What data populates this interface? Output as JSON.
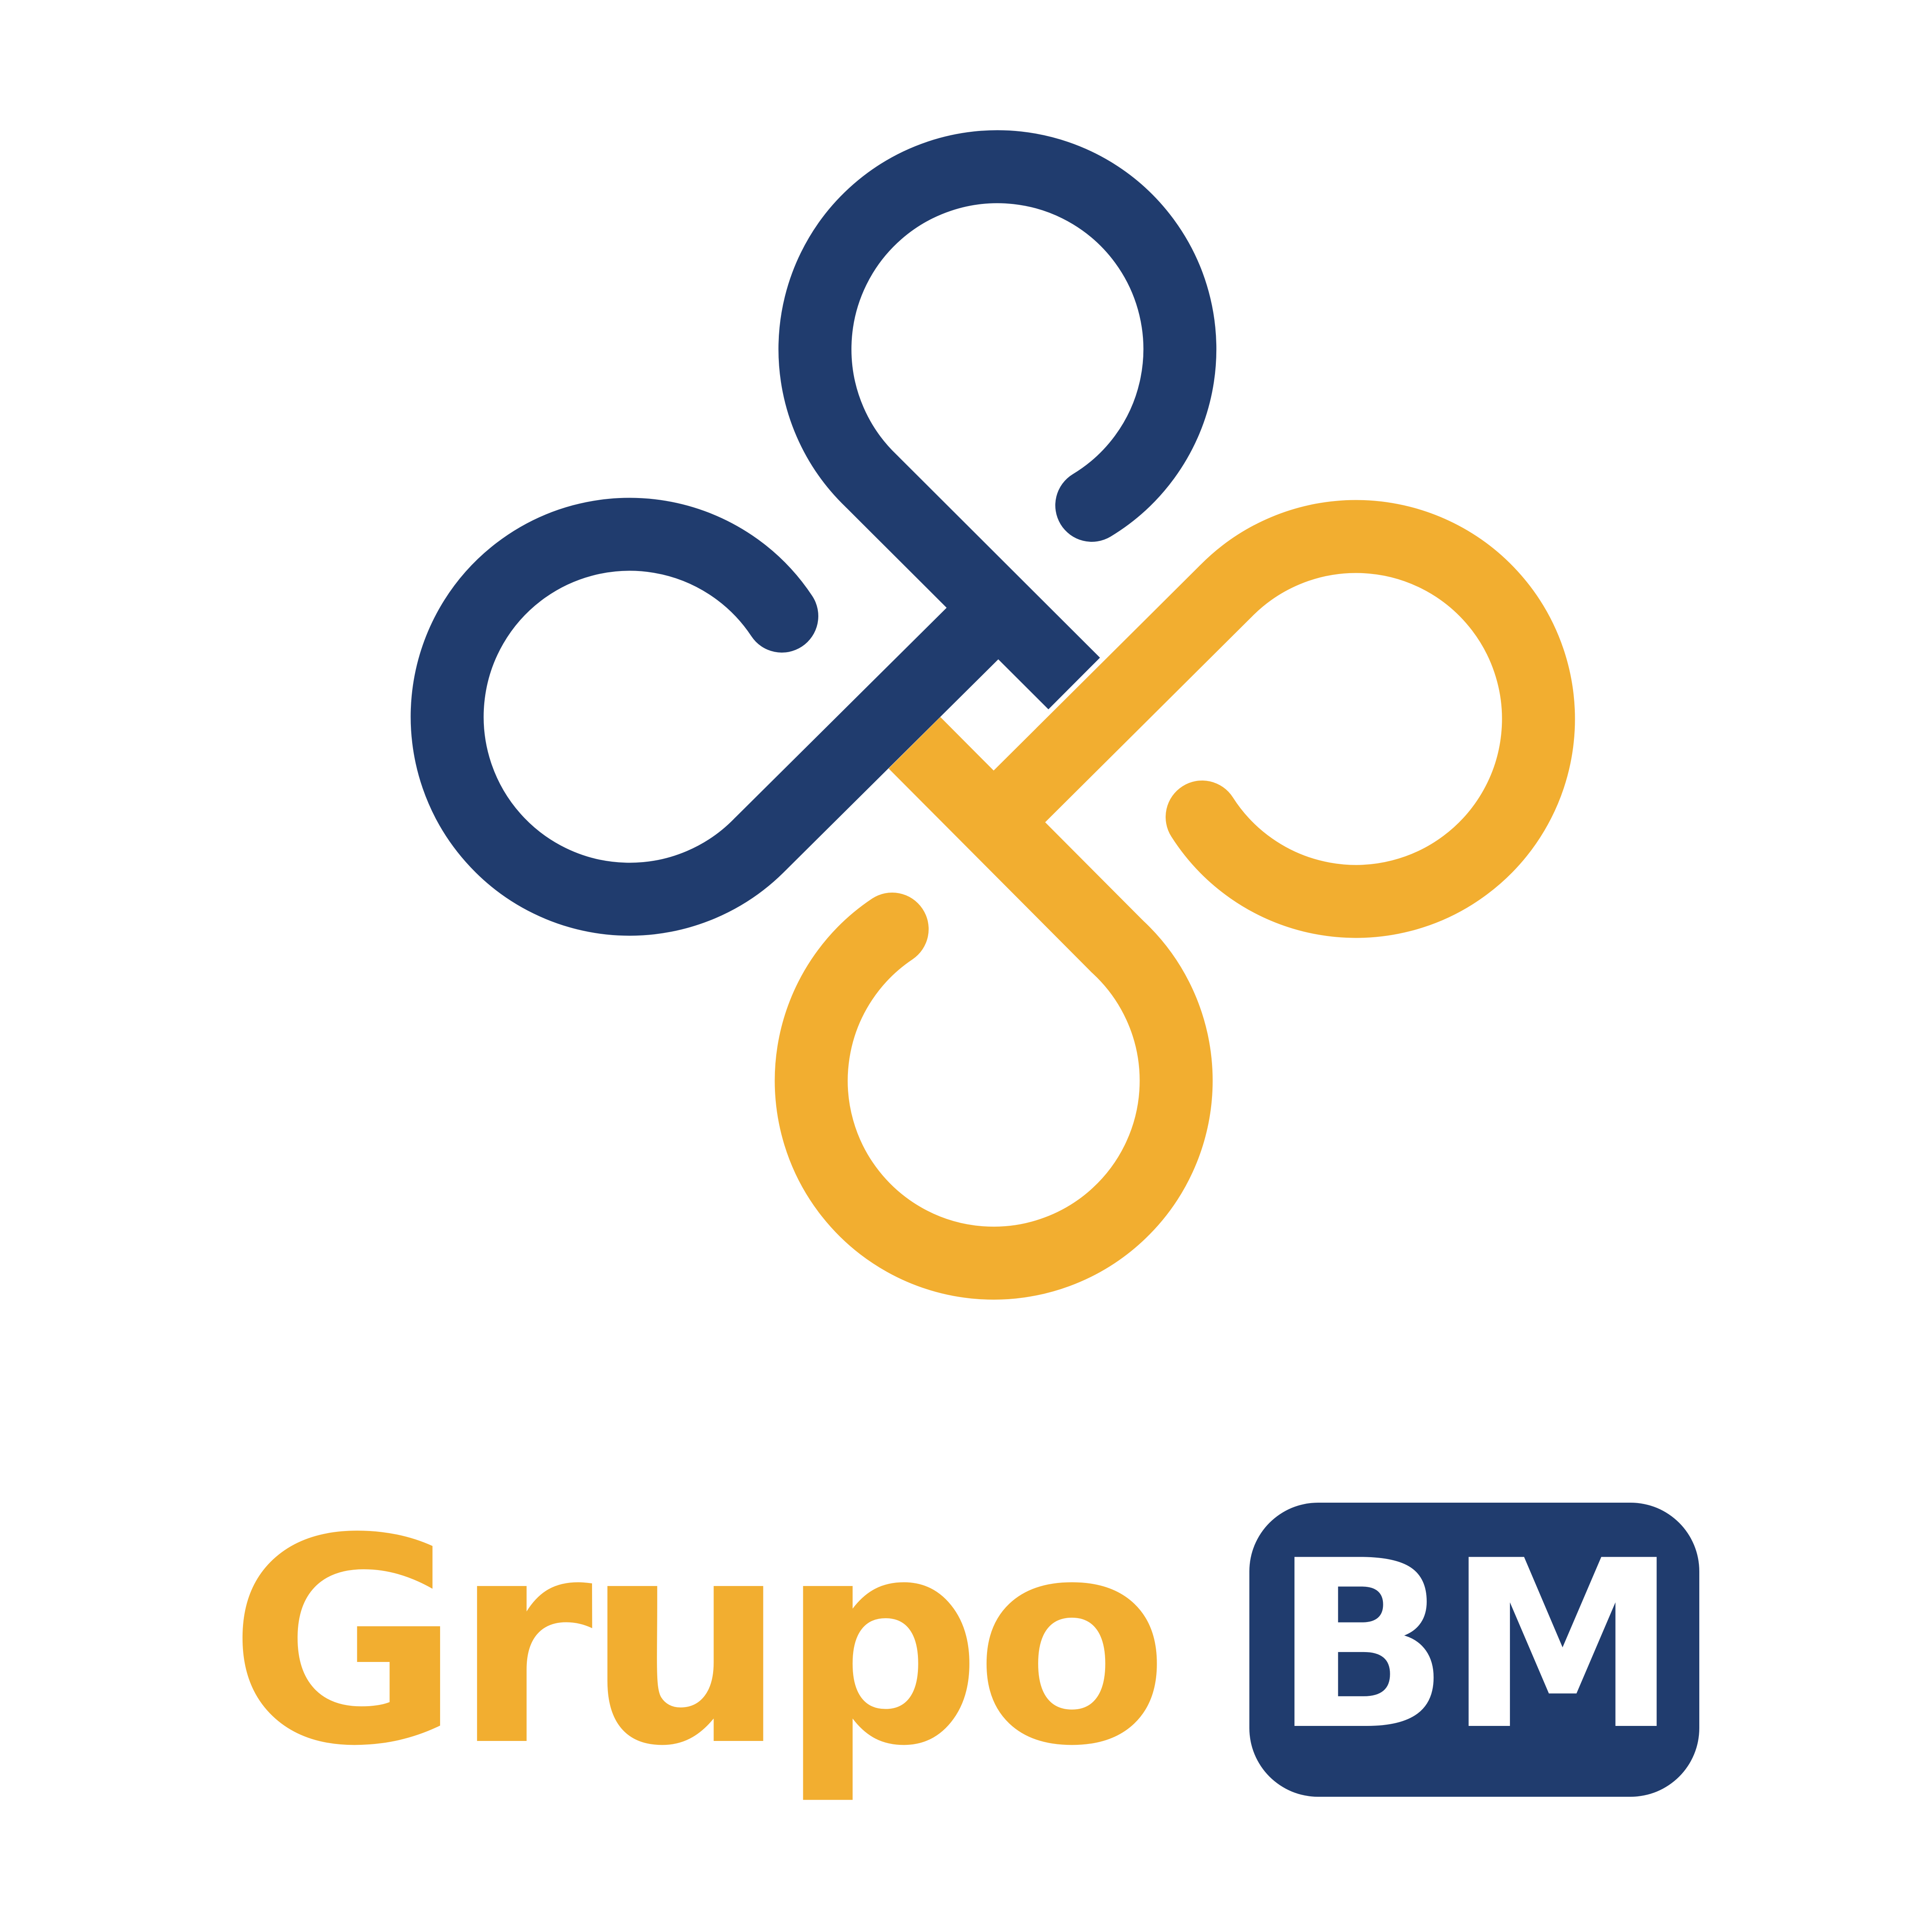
{
  "logo": {
    "brand_word": "Grupo",
    "badge_text": "BM",
    "mark_icon": "interlaced-loops-icon"
  },
  "colors": {
    "navy": "#203C6E",
    "gold": "#F2AE30",
    "white": "#FFFFFF",
    "background": "#FFFFFF"
  }
}
